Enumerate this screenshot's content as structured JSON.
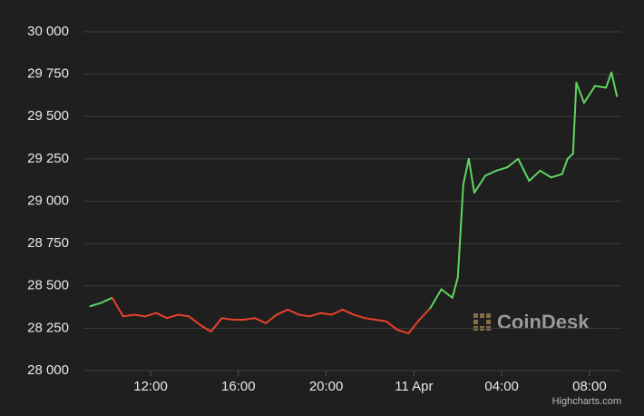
{
  "chart_data": {
    "type": "line",
    "x": [
      9.25,
      9.75,
      10.25,
      10.75,
      11.25,
      11.75,
      12.25,
      12.75,
      13.25,
      13.75,
      14.25,
      14.75,
      15.25,
      15.75,
      16.25,
      16.75,
      17.25,
      17.75,
      18.25,
      18.75,
      19.25,
      19.75,
      20.25,
      20.75,
      21.25,
      21.75,
      22.25,
      22.75,
      23.25,
      23.75,
      24.25,
      24.75,
      25.25,
      25.75,
      26.0,
      26.25,
      26.5,
      26.75,
      27.25,
      27.75,
      28.25,
      28.75,
      29.25,
      29.75,
      30.25,
      30.75,
      31.0,
      31.25,
      31.4,
      31.75,
      32.25,
      32.75,
      33.0,
      33.25
    ],
    "values": [
      28380,
      28400,
      28430,
      28320,
      28330,
      28320,
      28340,
      28310,
      28330,
      28320,
      28270,
      28230,
      28310,
      28300,
      28300,
      28310,
      28280,
      28330,
      28360,
      28330,
      28320,
      28340,
      28330,
      28360,
      28330,
      28310,
      28300,
      28290,
      28240,
      28220,
      28300,
      28370,
      28480,
      28430,
      28550,
      29100,
      29250,
      29050,
      29150,
      29180,
      29200,
      29250,
      29120,
      29180,
      29140,
      29160,
      29250,
      29280,
      29700,
      29580,
      29680,
      29670,
      29760,
      29620
    ],
    "zones": [
      {
        "below": 28380,
        "color": "#e8412c"
      },
      {
        "color": "#5ed560"
      }
    ],
    "xlim": [
      8.94,
      33.45
    ],
    "xticks": [
      {
        "value": 12,
        "label": "12:00"
      },
      {
        "value": 16,
        "label": "16:00"
      },
      {
        "value": 20,
        "label": "20:00"
      },
      {
        "value": 24,
        "label": "11 Apr"
      },
      {
        "value": 28,
        "label": "04:00"
      },
      {
        "value": 32,
        "label": "08:00"
      }
    ],
    "ylim": [
      28000,
      30000
    ],
    "yticks": [
      {
        "value": 28000,
        "label": "28 000"
      },
      {
        "value": 28250,
        "label": "28 250"
      },
      {
        "value": 28500,
        "label": "28 500"
      },
      {
        "value": 28750,
        "label": "28 750"
      },
      {
        "value": 29000,
        "label": "29 000"
      },
      {
        "value": 29250,
        "label": "29 250"
      },
      {
        "value": 29500,
        "label": "29 500"
      },
      {
        "value": 29750,
        "label": "29 750"
      },
      {
        "value": 30000,
        "label": "30 000"
      }
    ],
    "grid": true,
    "watermark": "CoinDesk",
    "credits": "Highcharts.com"
  }
}
